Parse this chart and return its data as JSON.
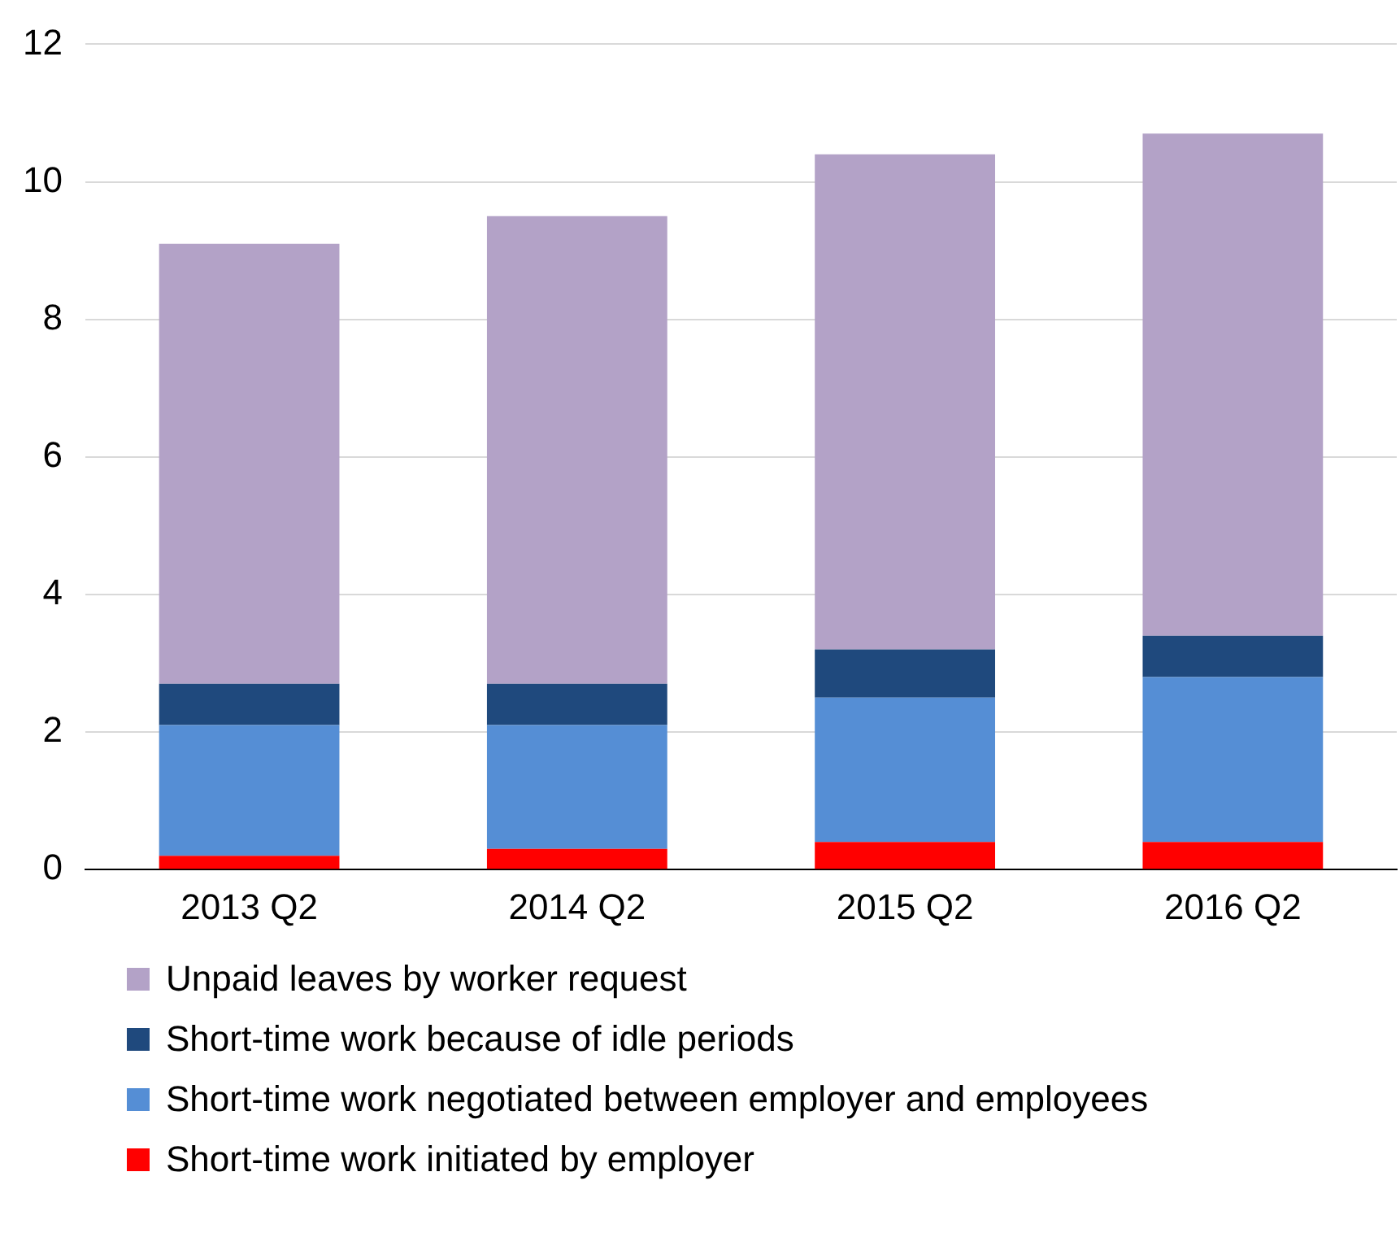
{
  "chart_data": {
    "type": "bar",
    "stacked": true,
    "categories": [
      "2013 Q2",
      "2014 Q2",
      "2015 Q2",
      "2016 Q2"
    ],
    "series": [
      {
        "name": "Short-time work initiated by employer",
        "color": "#ff0000",
        "values": [
          0.2,
          0.3,
          0.4,
          0.4
        ]
      },
      {
        "name": "Short-time work negotiated between employer and employees",
        "color": "#558ed5",
        "values": [
          1.9,
          1.8,
          2.1,
          2.4
        ]
      },
      {
        "name": "Short-time work because of idle periods",
        "color": "#1f497d",
        "values": [
          0.6,
          0.6,
          0.7,
          0.6
        ]
      },
      {
        "name": "Unpaid leaves by worker request",
        "color": "#b3a2c7",
        "values": [
          6.4,
          6.8,
          7.2,
          7.3
        ]
      }
    ],
    "ylim": [
      0,
      12
    ],
    "yticks": [
      0,
      2,
      4,
      6,
      8,
      10,
      12
    ],
    "grid": "y",
    "legend": "bottom"
  }
}
